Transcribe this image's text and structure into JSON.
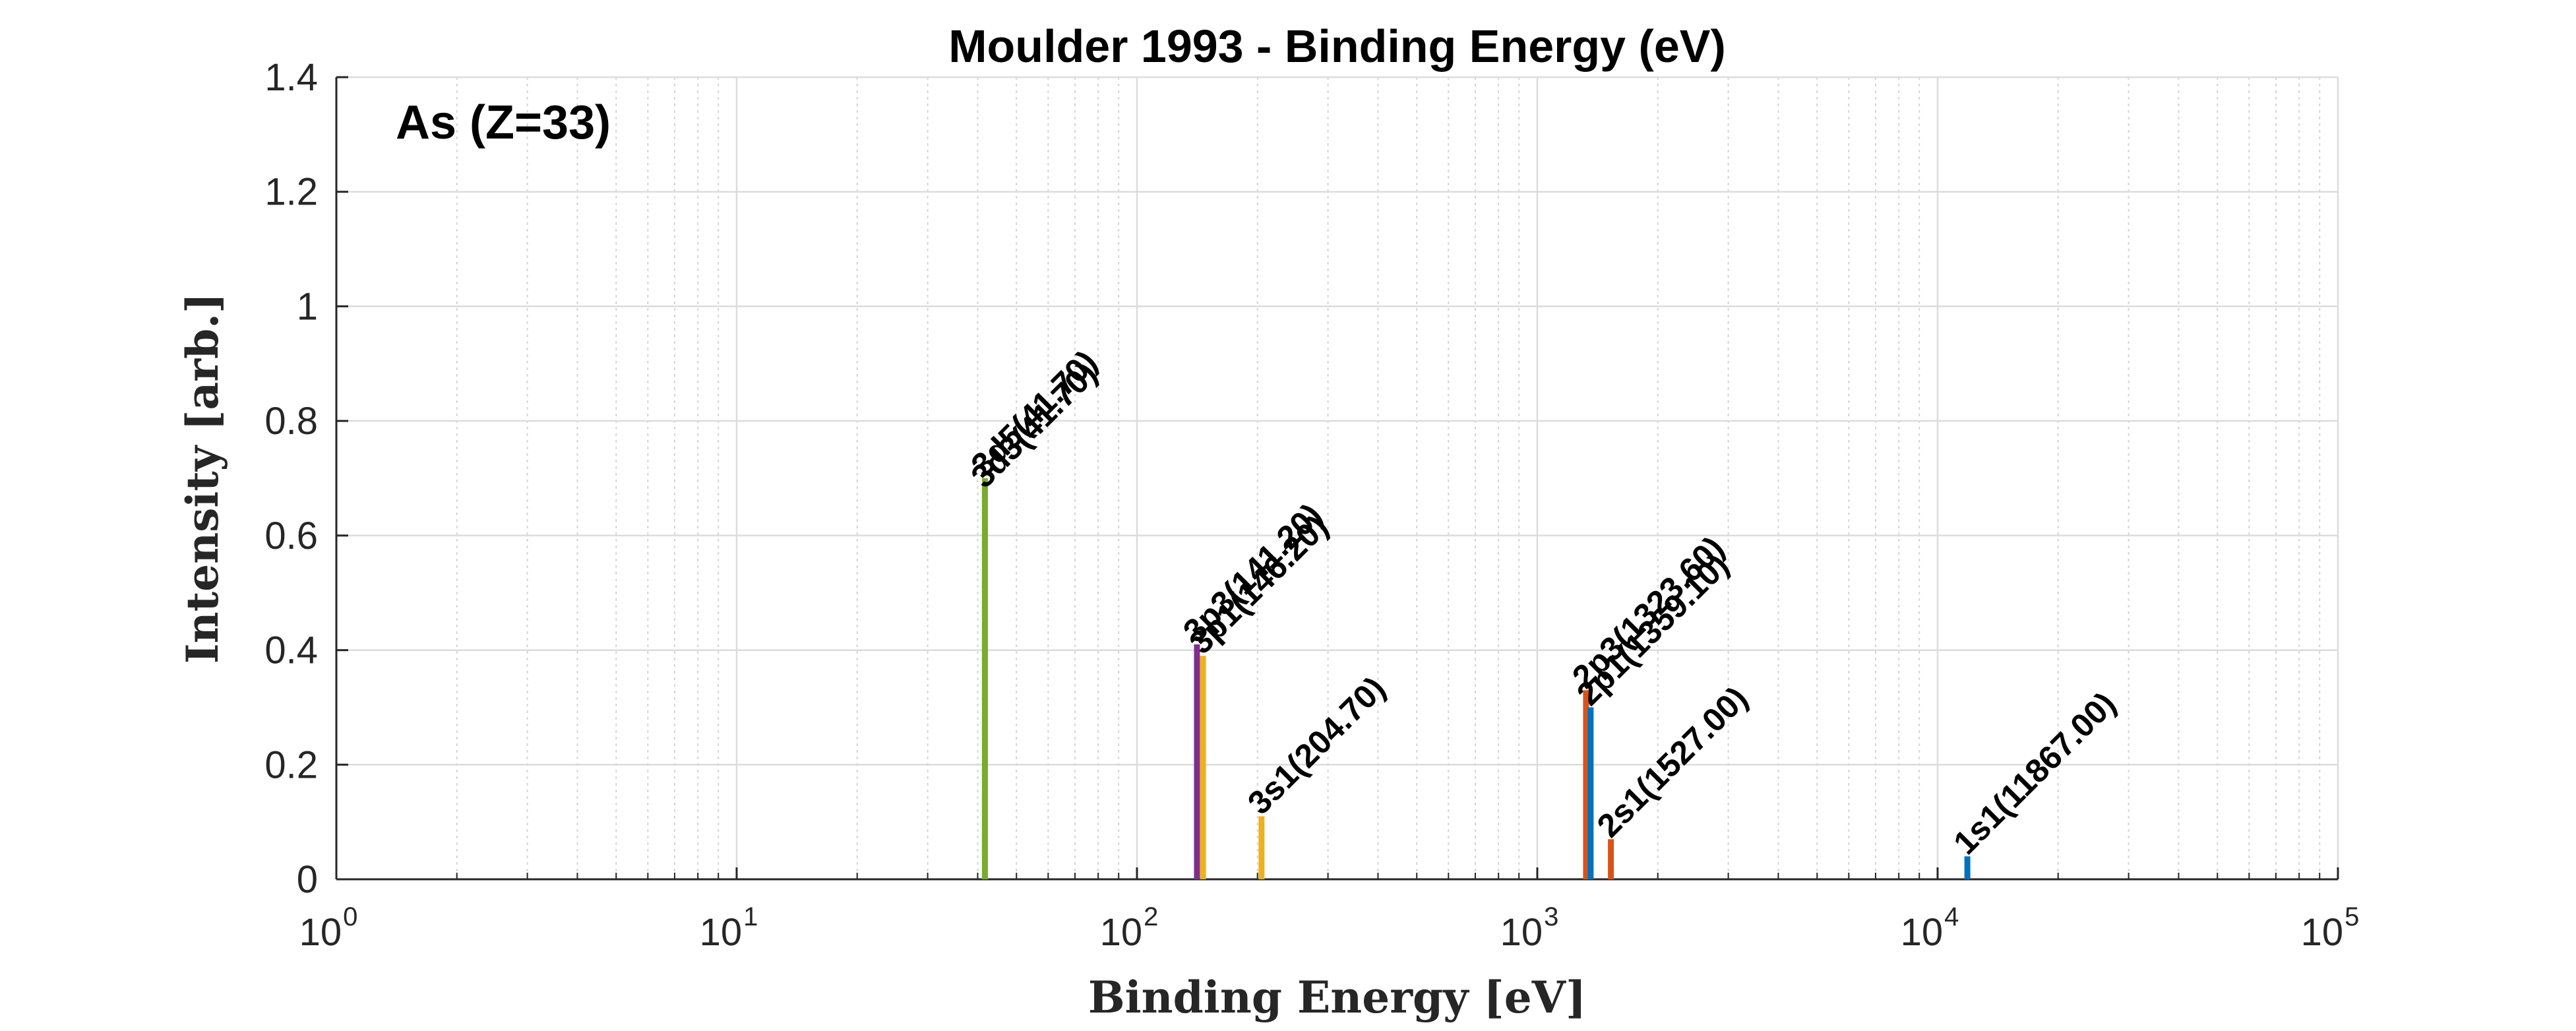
{
  "chart_data": {
    "type": "bar",
    "title": "Moulder 1993 - Binding Energy (eV)",
    "xlabel": "Binding Energy [eV]",
    "ylabel": "Intensity [arb.]",
    "x_scale": "log",
    "xlim": [
      1,
      100000
    ],
    "ylim": [
      0,
      1.4
    ],
    "grid": true,
    "annotation": "As (Z=33)",
    "x_ticks": [
      {
        "base": "10",
        "exp": "0",
        "value": 1
      },
      {
        "base": "10",
        "exp": "1",
        "value": 10
      },
      {
        "base": "10",
        "exp": "2",
        "value": 100
      },
      {
        "base": "10",
        "exp": "3",
        "value": 1000
      },
      {
        "base": "10",
        "exp": "4",
        "value": 10000
      },
      {
        "base": "10",
        "exp": "5",
        "value": 100000
      }
    ],
    "y_ticks": [
      "0",
      "0.2",
      "0.4",
      "0.6",
      "0.8",
      "1",
      "1.2",
      "1.4"
    ],
    "peaks": [
      {
        "label": "3d5(41.70)",
        "x": 41.7,
        "y": 0.7,
        "color": "#77AC30"
      },
      {
        "label": "3d3(41.70)",
        "x": 41.7,
        "y": 0.68,
        "color": "#77AC30"
      },
      {
        "label": "3p3(141.20)",
        "x": 141.2,
        "y": 0.41,
        "color": "#7E2F8E"
      },
      {
        "label": "3p1(146.20)",
        "x": 146.2,
        "y": 0.39,
        "color": "#EDB120"
      },
      {
        "label": "3s1(204.70)",
        "x": 204.7,
        "y": 0.11,
        "color": "#EDB120"
      },
      {
        "label": "2p3(1323.60)",
        "x": 1323.6,
        "y": 0.33,
        "color": "#D95319"
      },
      {
        "label": "2p1(1359.10)",
        "x": 1359.1,
        "y": 0.3,
        "color": "#0072BD"
      },
      {
        "label": "2s1(1527.00)",
        "x": 1527.0,
        "y": 0.07,
        "color": "#D95319"
      },
      {
        "label": "1s1(11867.00)",
        "x": 11867.0,
        "y": 0.04,
        "color": "#0072BD"
      }
    ]
  }
}
